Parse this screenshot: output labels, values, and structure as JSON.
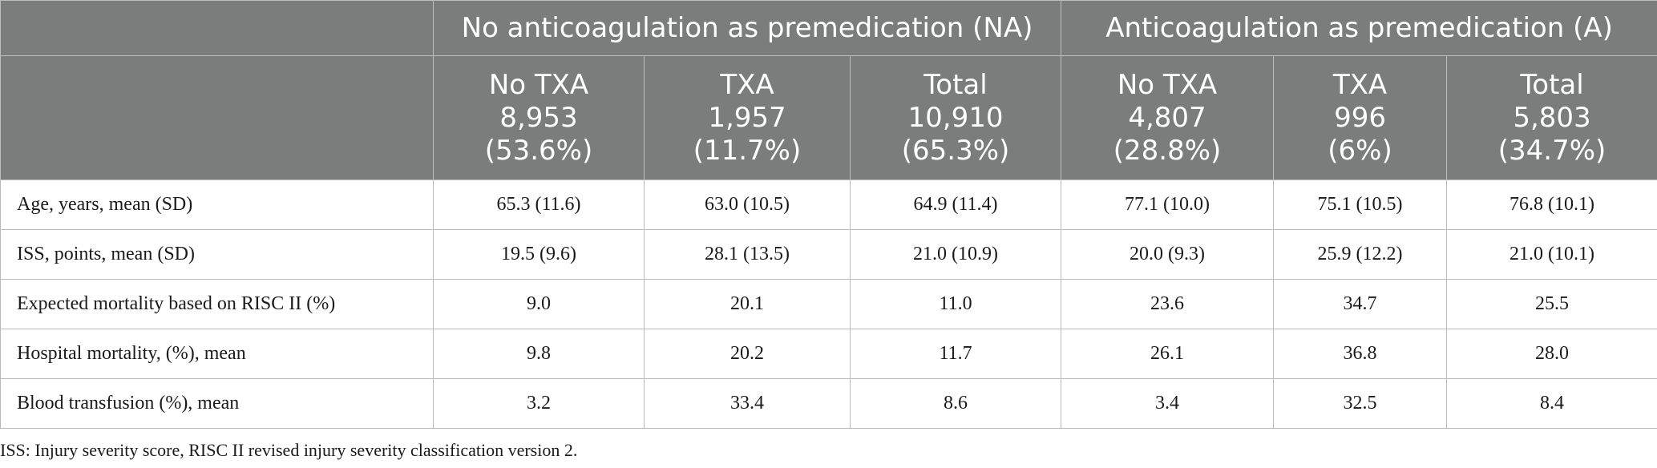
{
  "header": {
    "group_na": "No anticoagulation as premedication (NA)",
    "group_a": "Anticoagulation as premedication (A)",
    "columns": [
      {
        "name": "No TXA",
        "n": "8,953",
        "pct": "(53.6%)"
      },
      {
        "name": "TXA",
        "n": "1,957",
        "pct": "(11.7%)"
      },
      {
        "name": "Total",
        "n": "10,910",
        "pct": "(65.3%)"
      },
      {
        "name": "No TXA",
        "n": "4,807",
        "pct": "(28.8%)"
      },
      {
        "name": "TXA",
        "n": "996",
        "pct": "(6%)"
      },
      {
        "name": "Total",
        "n": "5,803",
        "pct": "(34.7%)"
      }
    ]
  },
  "rows": [
    {
      "label": "Age, years, mean (SD)",
      "values": [
        "65.3 (11.6)",
        "63.0 (10.5)",
        "64.9 (11.4)",
        "77.1 (10.0)",
        "75.1 (10.5)",
        "76.8 (10.1)"
      ]
    },
    {
      "label": "ISS, points, mean (SD)",
      "values": [
        "19.5 (9.6)",
        "28.1 (13.5)",
        "21.0 (10.9)",
        "20.0 (9.3)",
        "25.9 (12.2)",
        "21.0 (10.1)"
      ]
    },
    {
      "label": "Expected mortality based on RISC II (%)",
      "values": [
        "9.0",
        "20.1",
        "11.0",
        "23.6",
        "34.7",
        "25.5"
      ]
    },
    {
      "label": "Hospital mortality, (%), mean",
      "values": [
        "9.8",
        "20.2",
        "11.7",
        "26.1",
        "36.8",
        "28.0"
      ]
    },
    {
      "label": "Blood transfusion (%), mean",
      "values": [
        "3.2",
        "33.4",
        "8.6",
        "3.4",
        "32.5",
        "8.4"
      ]
    }
  ],
  "footnote": "ISS: Injury severity score, RISC II revised injury severity classification version 2."
}
